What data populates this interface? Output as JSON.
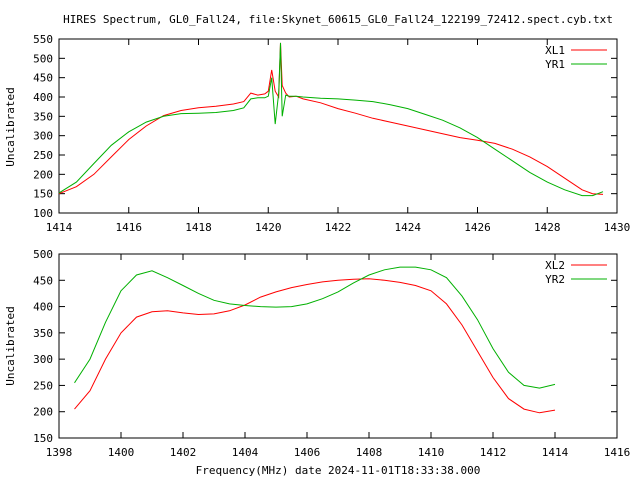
{
  "chart_data": [
    {
      "type": "line",
      "title": "HIRES Spectrum, GL0_Fall24, file:Skynet_60615_GL0_Fall24_122199_72412.spect.cyb.txt",
      "xlabel": "",
      "ylabel": "Uncalibrated",
      "xlim": [
        1414,
        1430
      ],
      "ylim": [
        100,
        550
      ],
      "xticks": [
        1414,
        1416,
        1418,
        1420,
        1422,
        1424,
        1426,
        1428,
        1430
      ],
      "yticks": [
        100,
        150,
        200,
        250,
        300,
        350,
        400,
        450,
        500,
        550
      ],
      "grid": false,
      "legend": "top-right",
      "series": [
        {
          "name": "XL1",
          "color": "#ff0000",
          "x": [
            1414.0,
            1414.5,
            1415.0,
            1415.5,
            1416.0,
            1416.5,
            1417.0,
            1417.5,
            1418.0,
            1418.5,
            1419.0,
            1419.3,
            1419.5,
            1419.7,
            1419.9,
            1420.0,
            1420.1,
            1420.2,
            1420.3,
            1420.35,
            1420.4,
            1420.5,
            1420.6,
            1420.8,
            1421.0,
            1421.5,
            1422.0,
            1422.5,
            1423.0,
            1423.5,
            1424.0,
            1424.5,
            1425.0,
            1425.5,
            1426.0,
            1426.5,
            1427.0,
            1427.5,
            1428.0,
            1428.5,
            1429.0,
            1429.3,
            1429.6
          ],
          "y": [
            150,
            168,
            200,
            245,
            290,
            325,
            352,
            365,
            372,
            376,
            382,
            388,
            410,
            405,
            408,
            415,
            470,
            415,
            400,
            540,
            430,
            410,
            400,
            402,
            395,
            385,
            370,
            358,
            345,
            335,
            325,
            315,
            305,
            295,
            288,
            280,
            265,
            245,
            220,
            190,
            160,
            150,
            148
          ]
        },
        {
          "name": "YR1",
          "color": "#00b000",
          "x": [
            1414.0,
            1414.5,
            1415.0,
            1415.5,
            1416.0,
            1416.5,
            1417.0,
            1417.5,
            1418.0,
            1418.5,
            1419.0,
            1419.3,
            1419.5,
            1419.7,
            1419.9,
            1420.0,
            1420.1,
            1420.2,
            1420.3,
            1420.35,
            1420.4,
            1420.5,
            1420.6,
            1420.8,
            1421.0,
            1421.5,
            1422.0,
            1422.5,
            1423.0,
            1423.5,
            1424.0,
            1424.5,
            1425.0,
            1425.5,
            1426.0,
            1426.5,
            1427.0,
            1427.5,
            1428.0,
            1428.5,
            1429.0,
            1429.3,
            1429.6
          ],
          "y": [
            152,
            180,
            228,
            275,
            310,
            335,
            350,
            357,
            358,
            360,
            365,
            372,
            395,
            398,
            398,
            402,
            450,
            330,
            410,
            540,
            350,
            405,
            402,
            402,
            400,
            397,
            395,
            392,
            388,
            380,
            370,
            355,
            340,
            320,
            295,
            265,
            235,
            205,
            180,
            160,
            145,
            145,
            155
          ]
        }
      ]
    },
    {
      "type": "line",
      "title": "",
      "xlabel": "Frequency(MHz) date 2024-11-01T18:33:38.000",
      "ylabel": "Uncalibrated",
      "xlim": [
        1398,
        1416
      ],
      "ylim": [
        150,
        500
      ],
      "xticks": [
        1398,
        1400,
        1402,
        1404,
        1406,
        1408,
        1410,
        1412,
        1414,
        1416
      ],
      "yticks": [
        150,
        200,
        250,
        300,
        350,
        400,
        450,
        500
      ],
      "grid": false,
      "legend": "top-right",
      "series": [
        {
          "name": "XL2",
          "color": "#ff0000",
          "x": [
            1398.5,
            1399.0,
            1399.5,
            1400.0,
            1400.5,
            1401.0,
            1401.5,
            1402.0,
            1402.5,
            1403.0,
            1403.5,
            1404.0,
            1404.5,
            1405.0,
            1405.5,
            1406.0,
            1406.5,
            1407.0,
            1407.5,
            1408.0,
            1408.5,
            1409.0,
            1409.5,
            1410.0,
            1410.5,
            1411.0,
            1411.5,
            1412.0,
            1412.5,
            1413.0,
            1413.5,
            1414.0
          ],
          "y": [
            205,
            240,
            300,
            350,
            380,
            390,
            392,
            388,
            385,
            386,
            392,
            403,
            418,
            428,
            436,
            442,
            447,
            450,
            452,
            453,
            450,
            446,
            440,
            430,
            405,
            365,
            315,
            265,
            225,
            205,
            198,
            203
          ]
        },
        {
          "name": "YR2",
          "color": "#00b000",
          "x": [
            1398.5,
            1399.0,
            1399.5,
            1400.0,
            1400.5,
            1401.0,
            1401.5,
            1402.0,
            1402.5,
            1403.0,
            1403.5,
            1404.0,
            1404.5,
            1405.0,
            1405.5,
            1406.0,
            1406.5,
            1407.0,
            1407.5,
            1408.0,
            1408.5,
            1409.0,
            1409.5,
            1410.0,
            1410.5,
            1411.0,
            1411.5,
            1412.0,
            1412.5,
            1413.0,
            1413.5,
            1414.0
          ],
          "y": [
            255,
            300,
            370,
            430,
            460,
            468,
            455,
            440,
            425,
            412,
            405,
            402,
            400,
            399,
            400,
            405,
            415,
            428,
            445,
            460,
            470,
            475,
            475,
            470,
            455,
            420,
            375,
            320,
            275,
            250,
            245,
            252
          ]
        }
      ]
    }
  ]
}
